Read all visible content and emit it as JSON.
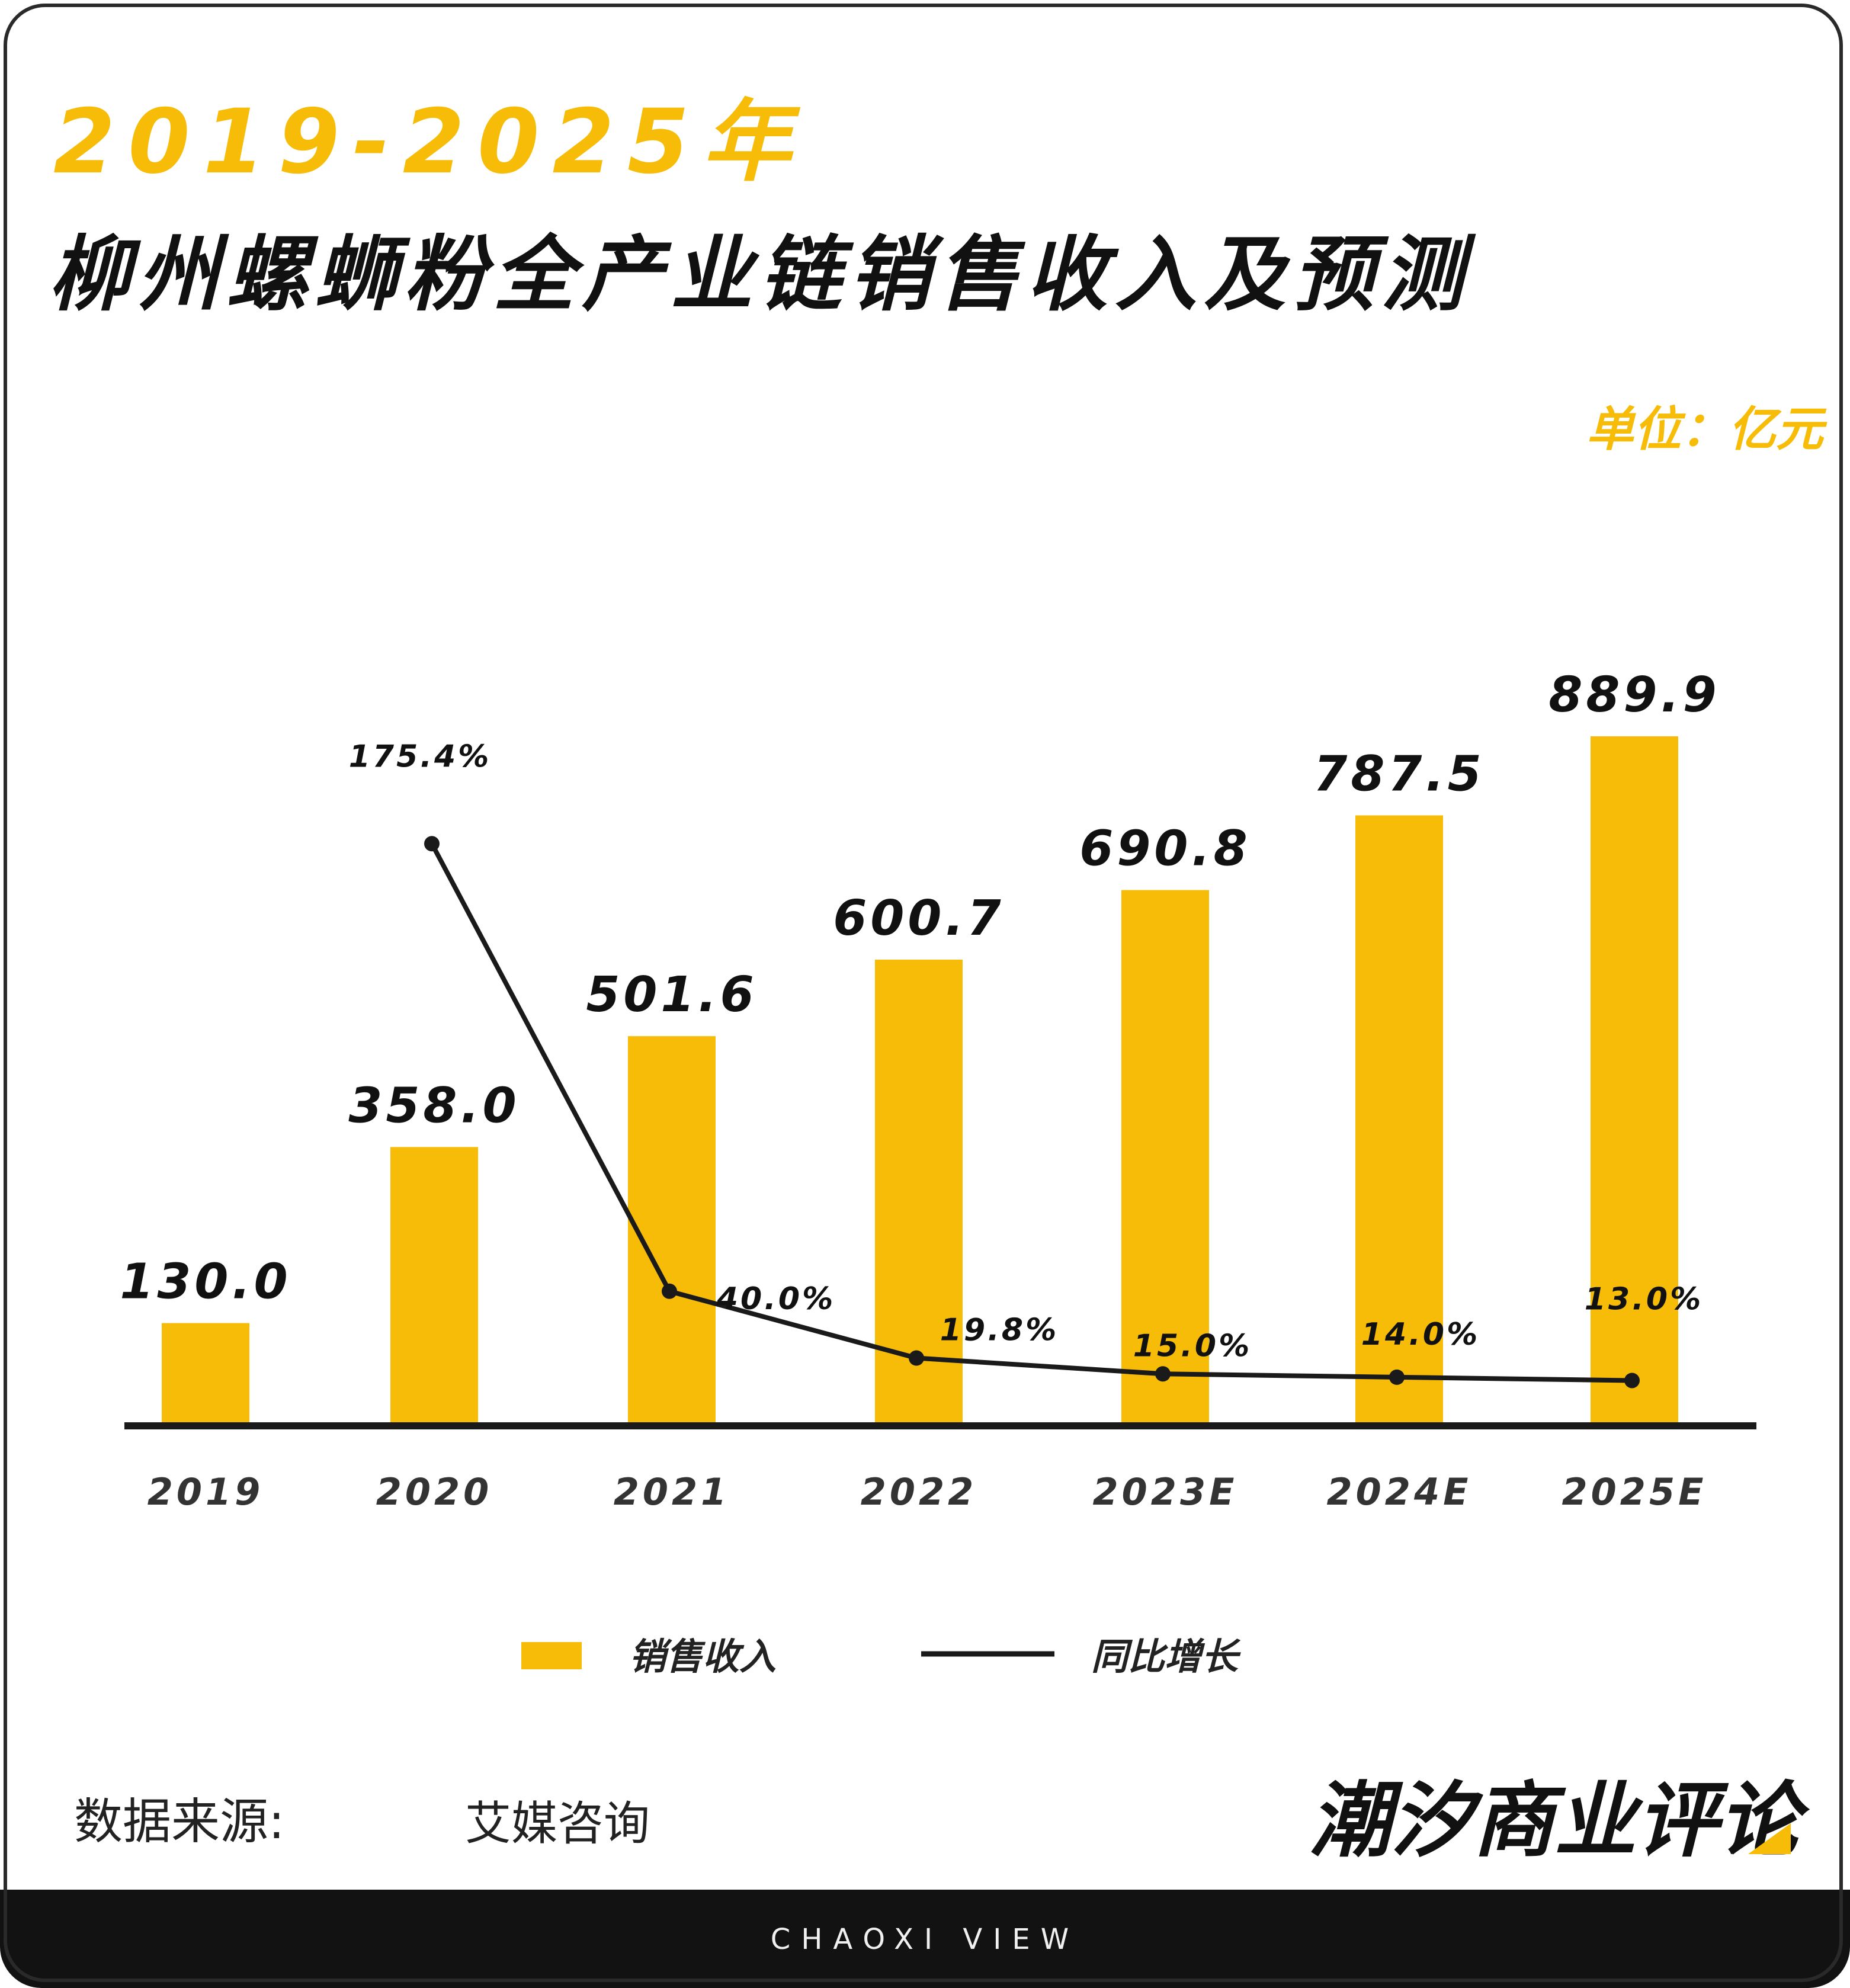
{
  "header": {
    "title_line1": "2019-2025年",
    "title_line2": "柳州螺蛳粉全产业链销售收入及预测",
    "unit": "单位：亿元"
  },
  "colors": {
    "bar": "#f6bc07",
    "line": "#1a1a1a",
    "text": "#111111",
    "accent": "#f6bc07"
  },
  "chart_data": {
    "type": "bar",
    "categories": [
      "2019",
      "2020",
      "2021",
      "2022",
      "2023E",
      "2024E",
      "2025E"
    ],
    "series": [
      {
        "name": "销售收入",
        "type": "bar",
        "axis": "left",
        "values": [
          130.0,
          358.0,
          501.6,
          600.7,
          690.8,
          787.5,
          889.9
        ],
        "labels": [
          "130.0",
          "358.0",
          "501.6",
          "600.7",
          "690.8",
          "787.5",
          "889.9"
        ]
      },
      {
        "name": "同比增长",
        "type": "line",
        "axis": "right",
        "unit": "%",
        "values": [
          null,
          175.4,
          40.0,
          19.8,
          15.0,
          14.0,
          13.0
        ],
        "labels": [
          "",
          "175.4%",
          "40.0%",
          "19.8%",
          "15.0%",
          "14.0%",
          "13.0%"
        ]
      }
    ],
    "ylim": [
      0,
      1000
    ],
    "y2lim": [
      0,
      200
    ],
    "grid": false,
    "legend": "bottom-center"
  },
  "source": {
    "label": "数据来源:",
    "value": "艾媒咨询"
  },
  "brand": {
    "logo_text": "潮汐商业评论",
    "footer_text": "CHAOXI VIEW"
  }
}
